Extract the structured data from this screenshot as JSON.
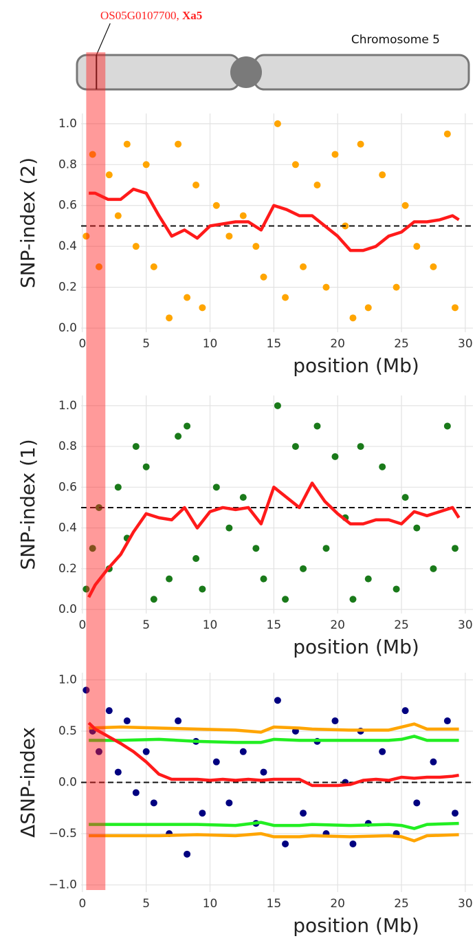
{
  "ideogram": {
    "label": "Chromosome 5",
    "gene_id": "OS05G0107700,",
    "gene_name": "Xa5",
    "gene_position_mb": 1.1,
    "highlight_mb": [
      0.3,
      1.8
    ]
  },
  "chart_data": [
    {
      "type": "scatter",
      "ylabel": "SNP-index (2)",
      "xlabel": "position (Mb)",
      "xlim": [
        -0.1,
        30.6
      ],
      "ylim": [
        -0.02,
        1.05
      ],
      "xticks": [
        0,
        5,
        10,
        15,
        20,
        25,
        30
      ],
      "yticks": [
        {
          "value": 0,
          "label": "0.0"
        },
        {
          "value": 0.2,
          "label": "0.2"
        },
        {
          "value": 0.4,
          "label": "0.4"
        },
        {
          "value": 0.6,
          "label": "0.6"
        },
        {
          "value": 0.8,
          "label": "0.8"
        },
        {
          "value": 1,
          "label": "1.0"
        }
      ],
      "grid": true,
      "hline": 0.5,
      "series": [
        {
          "kind": "points",
          "color": "#ffa500",
          "x": [
            0.3,
            0.8,
            1.3,
            2.1,
            2.8,
            3.5,
            4.2,
            5.0,
            5.6,
            6.8,
            7.5,
            8.2,
            8.9,
            9.4,
            10.5,
            11.5,
            12.6,
            13.6,
            14.2,
            15.3,
            15.9,
            16.7,
            17.3,
            18.4,
            19.1,
            19.8,
            20.6,
            21.2,
            21.8,
            22.4,
            23.5,
            24.6,
            25.3,
            26.2,
            27.5,
            28.6,
            29.2
          ],
          "values": [
            0.45,
            0.85,
            0.3,
            0.75,
            0.55,
            0.9,
            0.4,
            0.8,
            0.3,
            0.05,
            0.9,
            0.15,
            0.7,
            0.1,
            0.6,
            0.45,
            0.55,
            0.4,
            0.25,
            1.0,
            0.15,
            0.8,
            0.3,
            0.7,
            0.2,
            0.85,
            0.5,
            0.05,
            0.9,
            0.1,
            0.75,
            0.2,
            0.6,
            0.4,
            0.3,
            0.95,
            0.1
          ]
        },
        {
          "kind": "line",
          "color": "#ff1a1a",
          "x": [
            0.5,
            1,
            2,
            3,
            4,
            5,
            6,
            7,
            8,
            9,
            10,
            11,
            12,
            13,
            14,
            15,
            16,
            17,
            18,
            19,
            20,
            21,
            22,
            23,
            24,
            25,
            26,
            27,
            28,
            29,
            29.5
          ],
          "values": [
            0.66,
            0.66,
            0.63,
            0.63,
            0.68,
            0.66,
            0.55,
            0.45,
            0.48,
            0.44,
            0.5,
            0.51,
            0.52,
            0.52,
            0.48,
            0.6,
            0.58,
            0.55,
            0.55,
            0.5,
            0.45,
            0.38,
            0.38,
            0.4,
            0.45,
            0.47,
            0.52,
            0.52,
            0.53,
            0.55,
            0.53
          ]
        }
      ]
    },
    {
      "type": "scatter",
      "ylabel": "SNP-index (1)",
      "xlabel": "position (Mb)",
      "xlim": [
        -0.1,
        30.6
      ],
      "ylim": [
        -0.02,
        1.05
      ],
      "xticks": [
        0,
        5,
        10,
        15,
        20,
        25,
        30
      ],
      "yticks": [
        {
          "value": 0,
          "label": "0.0"
        },
        {
          "value": 0.2,
          "label": "0.2"
        },
        {
          "value": 0.4,
          "label": "0.4"
        },
        {
          "value": 0.6,
          "label": "0.6"
        },
        {
          "value": 0.8,
          "label": "0.8"
        },
        {
          "value": 1,
          "label": "1.0"
        }
      ],
      "grid": true,
      "hline": 0.5,
      "series": [
        {
          "kind": "points",
          "color": "#1a7a1a",
          "x": [
            0.3,
            0.8,
            1.3,
            2.1,
            2.8,
            3.5,
            4.2,
            5.0,
            5.6,
            6.8,
            7.5,
            8.2,
            8.9,
            9.4,
            10.5,
            11.5,
            12.6,
            13.6,
            14.2,
            15.3,
            15.9,
            16.7,
            17.3,
            18.4,
            19.1,
            19.8,
            20.6,
            21.2,
            21.8,
            22.4,
            23.5,
            24.6,
            25.3,
            26.2,
            27.5,
            28.6,
            29.2
          ],
          "values": [
            0.1,
            0.3,
            0.5,
            0.2,
            0.6,
            0.35,
            0.8,
            0.7,
            0.05,
            0.15,
            0.85,
            0.9,
            0.25,
            0.1,
            0.6,
            0.4,
            0.55,
            0.3,
            0.15,
            1.0,
            0.05,
            0.8,
            0.2,
            0.9,
            0.3,
            0.75,
            0.45,
            0.05,
            0.8,
            0.15,
            0.7,
            0.1,
            0.55,
            0.4,
            0.2,
            0.9,
            0.3
          ]
        },
        {
          "kind": "line",
          "color": "#ff1a1a",
          "x": [
            0.5,
            1,
            2,
            3,
            4,
            5,
            6,
            7,
            8,
            9,
            10,
            11,
            12,
            13,
            14,
            15,
            16,
            17,
            18,
            19,
            20,
            21,
            22,
            23,
            24,
            25,
            26,
            27,
            28,
            29,
            29.5
          ],
          "values": [
            0.06,
            0.12,
            0.2,
            0.27,
            0.38,
            0.47,
            0.45,
            0.44,
            0.5,
            0.4,
            0.48,
            0.5,
            0.49,
            0.5,
            0.42,
            0.6,
            0.55,
            0.5,
            0.62,
            0.53,
            0.47,
            0.42,
            0.42,
            0.44,
            0.44,
            0.42,
            0.48,
            0.46,
            0.48,
            0.5,
            0.45
          ]
        }
      ]
    },
    {
      "type": "scatter",
      "ylabel": "ΔSNP-index",
      "xlabel": "position (Mb)",
      "xlim": [
        -0.1,
        30.6
      ],
      "ylim": [
        -1.07,
        1.07
      ],
      "xticks": [
        0,
        5,
        10,
        15,
        20,
        25,
        30
      ],
      "yticks": [
        {
          "value": -1,
          "label": "−1.0"
        },
        {
          "value": -0.5,
          "label": "−0.5"
        },
        {
          "value": 0,
          "label": "0.0"
        },
        {
          "value": 0.5,
          "label": "0.5"
        },
        {
          "value": 1,
          "label": "1.0"
        }
      ],
      "grid": true,
      "hline": 0,
      "series": [
        {
          "kind": "points",
          "color": "#000080",
          "x": [
            0.3,
            0.8,
            1.3,
            2.1,
            2.8,
            3.5,
            4.2,
            5.0,
            5.6,
            6.8,
            7.5,
            8.2,
            8.9,
            9.4,
            10.5,
            11.5,
            12.6,
            13.6,
            14.2,
            15.3,
            15.9,
            16.7,
            17.3,
            18.4,
            19.1,
            19.8,
            20.6,
            21.2,
            21.8,
            22.4,
            23.5,
            24.6,
            25.3,
            26.2,
            27.5,
            28.6,
            29.2
          ],
          "values": [
            0.9,
            0.5,
            0.3,
            0.7,
            0.1,
            0.6,
            -0.1,
            0.3,
            -0.2,
            -0.5,
            0.6,
            -0.7,
            0.4,
            -0.3,
            0.2,
            -0.2,
            0.3,
            -0.4,
            0.1,
            0.8,
            -0.6,
            0.5,
            -0.3,
            0.4,
            -0.5,
            0.6,
            0.0,
            -0.6,
            0.5,
            -0.4,
            0.3,
            -0.5,
            0.7,
            -0.2,
            0.2,
            0.6,
            -0.3
          ]
        },
        {
          "kind": "line",
          "color": "#ffa500",
          "x": [
            0.5,
            3,
            6,
            9,
            12,
            14,
            15,
            17,
            18,
            21,
            24,
            25,
            26,
            27,
            29.5
          ],
          "values": [
            0.53,
            0.54,
            0.53,
            0.52,
            0.51,
            0.49,
            0.54,
            0.53,
            0.52,
            0.51,
            0.51,
            0.54,
            0.57,
            0.52,
            0.52
          ]
        },
        {
          "kind": "line",
          "color": "#ffa500",
          "x": [
            0.5,
            3,
            6,
            9,
            12,
            14,
            15,
            17,
            18,
            21,
            24,
            25,
            26,
            27,
            29.5
          ],
          "values": [
            -0.52,
            -0.52,
            -0.52,
            -0.51,
            -0.52,
            -0.5,
            -0.53,
            -0.53,
            -0.52,
            -0.53,
            -0.52,
            -0.53,
            -0.57,
            -0.52,
            -0.51
          ]
        },
        {
          "kind": "line",
          "color": "#22ee22",
          "x": [
            0.5,
            3,
            6,
            9,
            12,
            14,
            15,
            17,
            18,
            21,
            24,
            25,
            26,
            27,
            29.5
          ],
          "values": [
            0.41,
            0.41,
            0.42,
            0.4,
            0.39,
            0.39,
            0.42,
            0.41,
            0.41,
            0.41,
            0.41,
            0.42,
            0.45,
            0.41,
            0.41
          ]
        },
        {
          "kind": "line",
          "color": "#22ee22",
          "x": [
            0.5,
            3,
            6,
            9,
            12,
            14,
            15,
            17,
            18,
            21,
            24,
            25,
            26,
            27,
            29.5
          ],
          "values": [
            -0.41,
            -0.41,
            -0.41,
            -0.41,
            -0.42,
            -0.39,
            -0.42,
            -0.42,
            -0.41,
            -0.42,
            -0.41,
            -0.42,
            -0.45,
            -0.41,
            -0.4
          ]
        },
        {
          "kind": "line",
          "color": "#ff1a1a",
          "x": [
            0.5,
            1,
            2,
            3,
            4,
            5,
            6,
            7,
            8,
            9,
            10,
            11,
            12,
            13,
            14,
            15,
            16,
            17,
            18,
            19,
            20,
            21,
            22,
            23,
            24,
            25,
            26,
            27,
            28,
            29,
            29.5
          ],
          "values": [
            0.58,
            0.52,
            0.45,
            0.38,
            0.3,
            0.2,
            0.08,
            0.03,
            0.03,
            0.03,
            0.02,
            0.03,
            0.02,
            0.03,
            0.02,
            0.03,
            0.03,
            0.03,
            -0.03,
            -0.03,
            -0.03,
            -0.02,
            0.02,
            0.03,
            0.02,
            0.05,
            0.04,
            0.05,
            0.05,
            0.06,
            0.07
          ]
        }
      ]
    }
  ]
}
